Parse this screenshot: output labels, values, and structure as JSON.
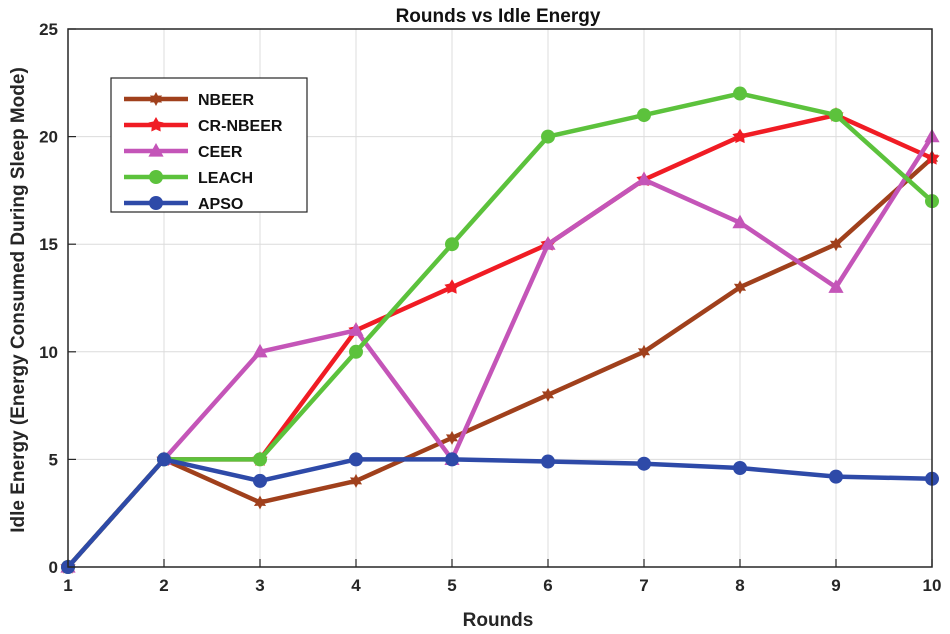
{
  "chart_data": {
    "type": "line",
    "title": "Rounds vs Idle Energy",
    "xlabel": "Rounds",
    "ylabel": "Idle Energy (Energy Consumed During Sleep Mode)",
    "x": [
      1,
      2,
      3,
      4,
      5,
      6,
      7,
      8,
      9,
      10
    ],
    "xlim": [
      1,
      10
    ],
    "ylim": [
      0,
      25
    ],
    "xticks": [
      "1",
      "2",
      "3",
      "4",
      "5",
      "6",
      "7",
      "8",
      "9",
      "10"
    ],
    "yticks": [
      "0",
      "5",
      "10",
      "15",
      "20",
      "25"
    ],
    "grid": true,
    "legend_position": "top-left",
    "series": [
      {
        "name": "NBEER",
        "color": "#a0401c",
        "marker": "hexagram",
        "values": [
          0,
          5,
          3,
          4,
          6,
          8,
          10,
          13,
          15,
          19
        ]
      },
      {
        "name": "CR-NBEER",
        "color": "#f01c24",
        "marker": "star",
        "values": [
          0,
          5,
          5,
          11,
          13,
          15,
          18,
          20,
          21,
          19
        ]
      },
      {
        "name": "CEER",
        "color": "#c455b8",
        "marker": "triangle",
        "values": [
          0,
          5,
          10,
          11,
          5,
          15,
          18,
          16,
          13,
          20
        ]
      },
      {
        "name": "LEACH",
        "color": "#5cc23c",
        "marker": "circle",
        "values": [
          0,
          5,
          5,
          10,
          15,
          20,
          21,
          22,
          21,
          17
        ]
      },
      {
        "name": "APSO",
        "color": "#2e4aa8",
        "marker": "circle",
        "values": [
          0,
          5,
          4,
          5,
          5,
          4.9,
          4.8,
          4.6,
          4.2,
          4.1
        ]
      }
    ]
  }
}
